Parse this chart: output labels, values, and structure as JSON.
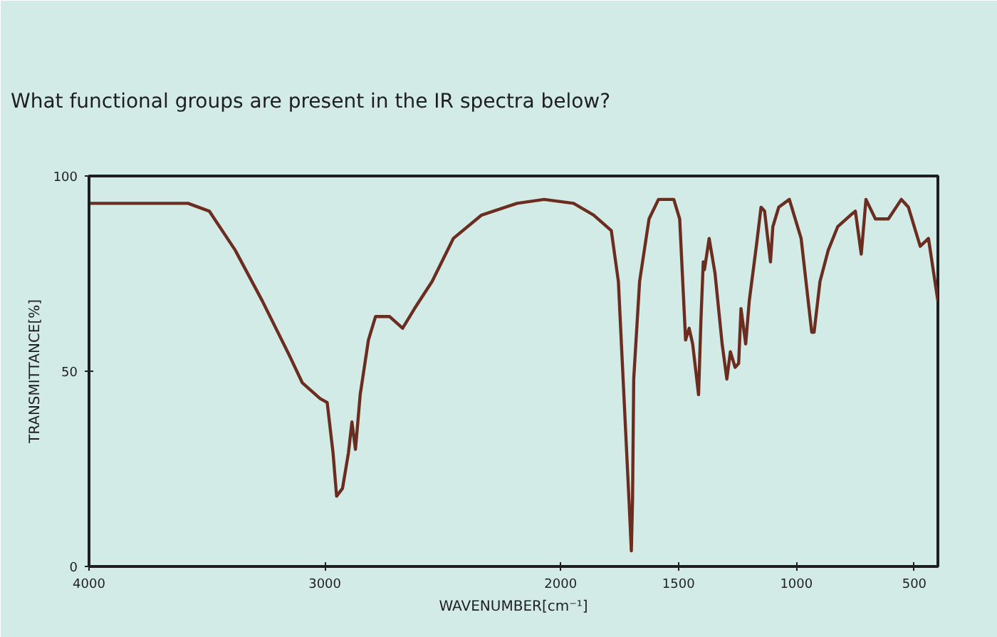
{
  "chart_data": {
    "type": "line",
    "title": "What functional groups are present in the IR spectra below?",
    "xlabel": "WAVENUMBER[cm⁻¹]",
    "ylabel": "TRANSMITTANCE[%]",
    "xlim": [
      4000,
      400
    ],
    "xticks": [
      4000,
      3000,
      2000,
      1500,
      1000,
      500
    ],
    "ylim": [
      0,
      100
    ],
    "yticks": [
      0,
      50,
      100
    ],
    "grid": false,
    "series": [
      {
        "color": "#6b2d1f",
        "x": [
          4000,
          3580,
          3490,
          3380,
          3265,
          3150,
          3095,
          3020,
          2990,
          2965,
          2950,
          2925,
          2900,
          2885,
          2870,
          2850,
          2815,
          2785,
          2725,
          2670,
          2620,
          2545,
          2455,
          2335,
          2185,
          2070,
          1945,
          1860,
          1785,
          1755,
          1735,
          1710,
          1700,
          1695,
          1690,
          1665,
          1625,
          1585,
          1520,
          1495,
          1470,
          1455,
          1440,
          1415,
          1405,
          1395,
          1390,
          1370,
          1345,
          1315,
          1295,
          1280,
          1260,
          1245,
          1235,
          1215,
          1200,
          1170,
          1150,
          1135,
          1110,
          1100,
          1075,
          1030,
          980,
          935,
          925,
          900,
          865,
          825,
          770,
          750,
          725,
          705,
          665,
          610,
          555,
          525,
          475,
          440,
          400
        ],
        "values": [
          93,
          93,
          91,
          81,
          68,
          54,
          47,
          43,
          42,
          29,
          18,
          20,
          29,
          37,
          30,
          44,
          58,
          64,
          64,
          61,
          66,
          73,
          84,
          90,
          93,
          94,
          93,
          90,
          86,
          73,
          48,
          17,
          4,
          17,
          48,
          73,
          89,
          94,
          94,
          89,
          58,
          61,
          57,
          44,
          63,
          78,
          76,
          84,
          75,
          57,
          48,
          55,
          51,
          52,
          66,
          57,
          68,
          82,
          92,
          91,
          78,
          87,
          92,
          94,
          84,
          60,
          60,
          73,
          81,
          87,
          90,
          91,
          80,
          94,
          89,
          89,
          94,
          92,
          82,
          84,
          68
        ]
      }
    ]
  }
}
